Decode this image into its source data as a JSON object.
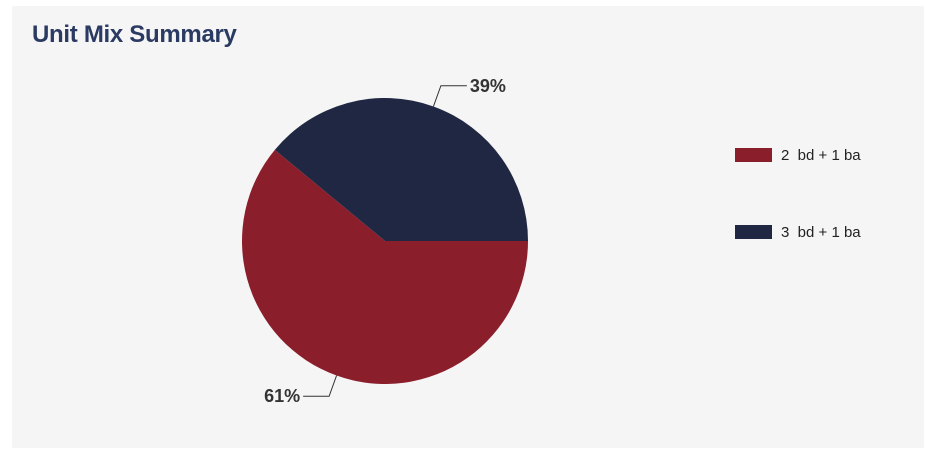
{
  "title": "Unit Mix Summary",
  "colors": {
    "panel_bg": "#f5f5f5",
    "title": "#2b3a63",
    "series_red": "#8b1e2b",
    "series_navy": "#1f2742"
  },
  "legend": [
    {
      "label": "2  bd + 1 ba",
      "color": "#8b1e2b"
    },
    {
      "label": "3  bd + 1 ba",
      "color": "#1f2742"
    }
  ],
  "chart_data": {
    "type": "pie",
    "title": "Unit Mix Summary",
    "categories": [
      "2  bd + 1 ba",
      "3  bd + 1 ba"
    ],
    "values": [
      61,
      39
    ],
    "labels": [
      "61%",
      "39%"
    ],
    "unit": "%",
    "legend_position": "right"
  }
}
